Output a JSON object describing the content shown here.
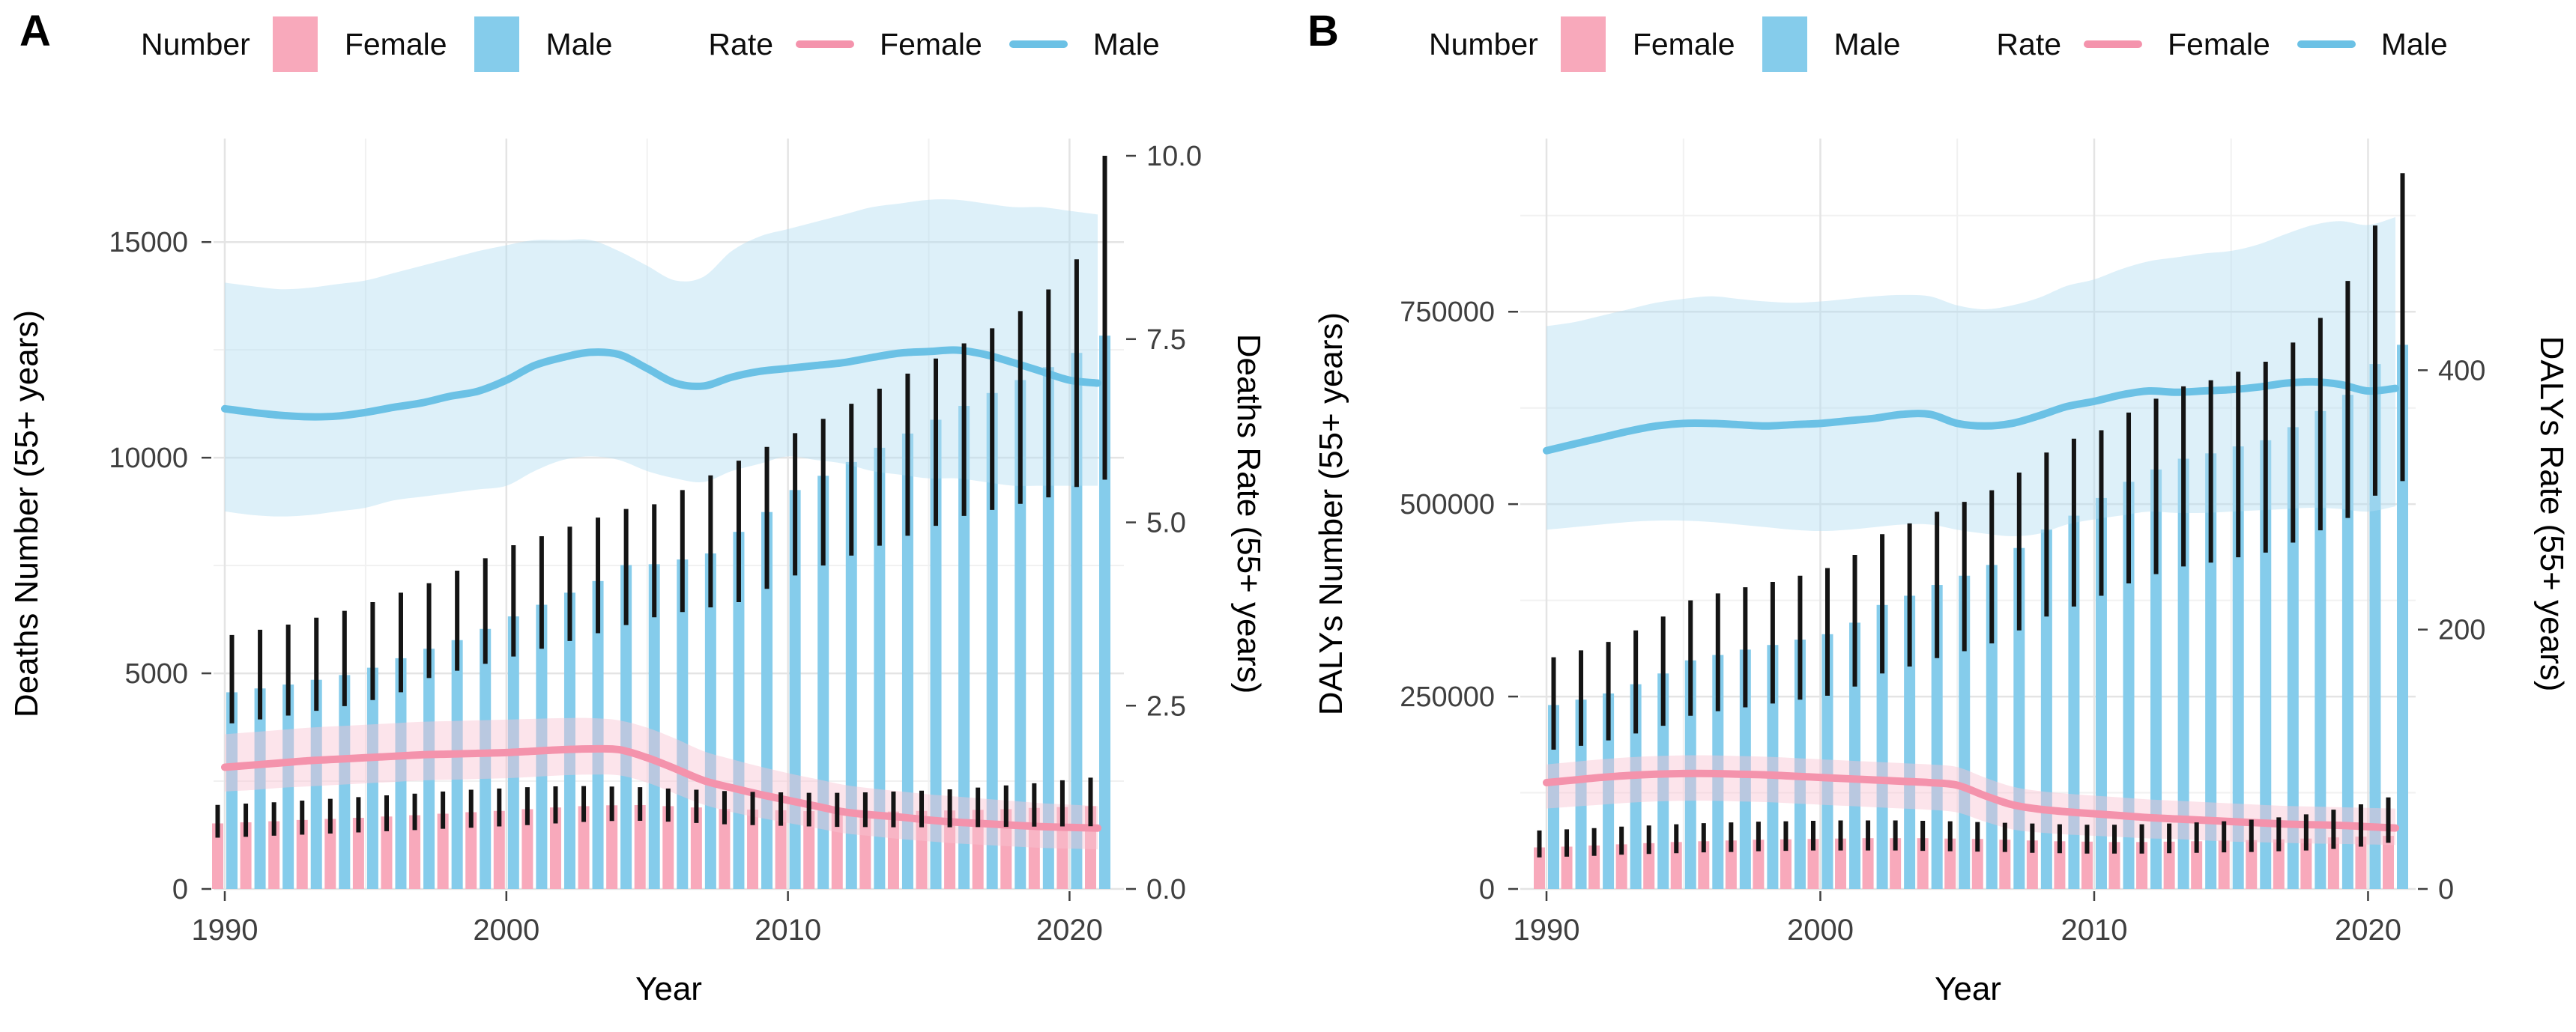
{
  "legend": {
    "number_label": "Number",
    "rate_label": "Rate",
    "female_label": "Female",
    "male_label": "Male"
  },
  "colors": {
    "female_bar": "#F8A9BB",
    "male_bar": "#85CCEB",
    "female_line": "#F493AC",
    "male_line": "#6BC1E5",
    "female_band": "#F9C4D2",
    "male_band": "#B3DDF2",
    "error_bar": "#141414",
    "grid_major": "#E4E4E4",
    "grid_minor": "#F1F1F1",
    "tick_text": "#3F3F3F",
    "title_text": "#000000",
    "tick_mark": "#404040"
  },
  "chart_data": [
    {
      "letter": "A",
      "type": "bar+line-dual-axis",
      "x_label": "Year",
      "left_axis": {
        "title": "Deaths Number (55+ years)",
        "ticks": [
          "0",
          "5000",
          "10000",
          "15000"
        ],
        "tick_values": [
          0,
          5000,
          10000,
          15000
        ],
        "max": 17400
      },
      "right_axis": {
        "title": "Deaths Rate (55+ years)",
        "ticks": [
          "0.0",
          "2.5",
          "5.0",
          "7.5",
          "10.0"
        ],
        "tick_values": [
          0,
          2.5,
          5,
          7.5,
          10
        ],
        "number_per_rate_unit": 1700
      },
      "x_axis": {
        "ticks": [
          "1990",
          "2000",
          "2010",
          "2020"
        ],
        "tick_values": [
          1990,
          2000,
          2010,
          2020
        ],
        "minor_values": [
          1995,
          2005,
          2015
        ]
      },
      "years": [
        1990,
        1991,
        1992,
        1993,
        1994,
        1995,
        1996,
        1997,
        1998,
        1999,
        2000,
        2001,
        2002,
        2003,
        2004,
        2005,
        2006,
        2007,
        2008,
        2009,
        2010,
        2011,
        2012,
        2013,
        2014,
        2015,
        2016,
        2017,
        2018,
        2019,
        2020,
        2021
      ],
      "bars": {
        "female": {
          "values": [
            1520,
            1545,
            1570,
            1600,
            1625,
            1650,
            1680,
            1710,
            1745,
            1780,
            1810,
            1850,
            1890,
            1920,
            1940,
            1945,
            1920,
            1890,
            1855,
            1840,
            1825,
            1805,
            1790,
            1785,
            1795,
            1810,
            1820,
            1835,
            1850,
            1880,
            1900,
            1920
          ],
          "upper": [
            1950,
            1980,
            2010,
            2050,
            2090,
            2130,
            2170,
            2210,
            2260,
            2300,
            2330,
            2360,
            2380,
            2385,
            2375,
            2360,
            2330,
            2300,
            2270,
            2250,
            2240,
            2230,
            2230,
            2240,
            2260,
            2280,
            2310,
            2350,
            2400,
            2450,
            2520,
            2580
          ],
          "lower": [
            1190,
            1210,
            1235,
            1260,
            1285,
            1310,
            1340,
            1365,
            1395,
            1420,
            1450,
            1480,
            1520,
            1555,
            1575,
            1580,
            1560,
            1530,
            1500,
            1480,
            1465,
            1450,
            1440,
            1435,
            1430,
            1430,
            1430,
            1435,
            1440,
            1445,
            1450,
            1455
          ]
        },
        "male": {
          "values": [
            4560,
            4650,
            4740,
            4850,
            4960,
            5130,
            5350,
            5570,
            5770,
            6030,
            6320,
            6590,
            6870,
            7140,
            7510,
            7530,
            7640,
            7780,
            8280,
            8740,
            9250,
            9580,
            9900,
            10230,
            10560,
            10880,
            11200,
            11500,
            11800,
            12100,
            12430,
            12830
          ],
          "upper": [
            5890,
            6010,
            6130,
            6290,
            6450,
            6650,
            6870,
            7090,
            7380,
            7670,
            7970,
            8180,
            8400,
            8610,
            8810,
            8920,
            9250,
            9590,
            9930,
            10250,
            10570,
            10900,
            11250,
            11600,
            11950,
            12300,
            12650,
            13000,
            13400,
            13900,
            14600,
            17000
          ],
          "lower": [
            3840,
            3930,
            4020,
            4130,
            4240,
            4380,
            4560,
            4890,
            5060,
            5220,
            5390,
            5570,
            5750,
            5930,
            6120,
            6300,
            6420,
            6530,
            6650,
            6960,
            7270,
            7500,
            7730,
            7960,
            8190,
            8420,
            8650,
            8790,
            8930,
            9080,
            9320,
            9490
          ]
        }
      },
      "rate_lines": {
        "female": {
          "values": [
            1.66,
            1.69,
            1.72,
            1.75,
            1.77,
            1.79,
            1.81,
            1.83,
            1.84,
            1.85,
            1.86,
            1.88,
            1.9,
            1.91,
            1.9,
            1.79,
            1.64,
            1.48,
            1.38,
            1.29,
            1.21,
            1.13,
            1.05,
            1.01,
            0.98,
            0.94,
            0.91,
            0.89,
            0.87,
            0.85,
            0.84,
            0.83
          ],
          "upper": [
            2.11,
            2.14,
            2.17,
            2.2,
            2.22,
            2.24,
            2.26,
            2.28,
            2.29,
            2.3,
            2.31,
            2.32,
            2.33,
            2.33,
            2.3,
            2.2,
            2.05,
            1.88,
            1.77,
            1.67,
            1.58,
            1.5,
            1.42,
            1.37,
            1.33,
            1.29,
            1.26,
            1.23,
            1.2,
            1.17,
            1.15,
            1.13
          ],
          "lower": [
            1.33,
            1.35,
            1.38,
            1.4,
            1.42,
            1.44,
            1.46,
            1.48,
            1.49,
            1.5,
            1.51,
            1.53,
            1.55,
            1.56,
            1.55,
            1.45,
            1.3,
            1.15,
            1.05,
            0.97,
            0.9,
            0.83,
            0.76,
            0.72,
            0.68,
            0.65,
            0.62,
            0.6,
            0.58,
            0.56,
            0.55,
            0.54
          ]
        },
        "male": {
          "values": [
            6.55,
            6.5,
            6.46,
            6.44,
            6.45,
            6.5,
            6.57,
            6.63,
            6.72,
            6.79,
            6.94,
            7.14,
            7.25,
            7.32,
            7.29,
            7.1,
            6.9,
            6.86,
            6.98,
            7.06,
            7.1,
            7.14,
            7.18,
            7.25,
            7.31,
            7.33,
            7.35,
            7.29,
            7.18,
            7.06,
            6.94,
            6.9
          ],
          "upper": [
            8.27,
            8.22,
            8.18,
            8.2,
            8.25,
            8.3,
            8.4,
            8.5,
            8.6,
            8.7,
            8.78,
            8.85,
            8.85,
            8.85,
            8.7,
            8.5,
            8.3,
            8.35,
            8.7,
            8.9,
            9.0,
            9.1,
            9.2,
            9.3,
            9.35,
            9.4,
            9.4,
            9.35,
            9.3,
            9.3,
            9.25,
            9.2
          ],
          "lower": [
            5.15,
            5.1,
            5.08,
            5.1,
            5.15,
            5.2,
            5.3,
            5.35,
            5.4,
            5.45,
            5.5,
            5.7,
            5.85,
            5.9,
            5.85,
            5.7,
            5.6,
            5.55,
            5.7,
            5.8,
            5.9,
            5.85,
            5.8,
            5.7,
            5.65,
            5.6,
            5.6,
            5.55,
            5.5,
            5.5,
            5.5,
            5.5
          ]
        }
      }
    },
    {
      "letter": "B",
      "type": "bar+line-dual-axis",
      "x_label": "Year",
      "left_axis": {
        "title": "DALYs Number (55+ years)",
        "ticks": [
          "0",
          "250000",
          "500000",
          "750000"
        ],
        "tick_values": [
          0,
          250000,
          500000,
          750000
        ],
        "max": 975000
      },
      "right_axis": {
        "title": "DALYs Rate (55+ years)",
        "ticks": [
          "0",
          "200",
          "400"
        ],
        "tick_values": [
          0,
          200,
          400
        ],
        "number_per_rate_unit": 1685
      },
      "x_axis": {
        "ticks": [
          "1990",
          "2000",
          "2010",
          "2020"
        ],
        "tick_values": [
          1990,
          2000,
          2010,
          2020
        ],
        "minor_values": [
          1995,
          2005,
          2015
        ]
      },
      "years": [
        1990,
        1991,
        1992,
        1993,
        1994,
        1995,
        1996,
        1997,
        1998,
        1999,
        2000,
        2001,
        2002,
        2003,
        2004,
        2005,
        2006,
        2007,
        2008,
        2009,
        2010,
        2011,
        2012,
        2013,
        2014,
        2015,
        2016,
        2017,
        2018,
        2019,
        2020,
        2021
      ],
      "bars": {
        "female": {
          "values": [
            54000,
            55000,
            56500,
            58000,
            59500,
            61000,
            62000,
            63000,
            64000,
            64500,
            65000,
            65500,
            66000,
            66000,
            66000,
            65500,
            65000,
            64000,
            63000,
            62000,
            61500,
            61000,
            61000,
            61500,
            62000,
            63000,
            63500,
            64500,
            65500,
            67000,
            68000,
            69000
          ],
          "upper": [
            76000,
            77500,
            79000,
            81000,
            82500,
            84000,
            85500,
            86500,
            87500,
            88000,
            88500,
            89000,
            89000,
            89000,
            88500,
            88000,
            87000,
            86000,
            85000,
            84000,
            83500,
            83500,
            84000,
            85000,
            86500,
            88000,
            90000,
            93000,
            97000,
            103000,
            110000,
            119000
          ],
          "lower": [
            41000,
            42000,
            43000,
            44500,
            45500,
            46500,
            47500,
            48000,
            49000,
            49500,
            50000,
            50000,
            50000,
            50000,
            49500,
            49000,
            48500,
            48000,
            47000,
            46500,
            46000,
            46000,
            46000,
            46500,
            47000,
            47500,
            48000,
            49000,
            50000,
            52000,
            55000,
            60000
          ]
        },
        "male": {
          "values": [
            239000,
            246000,
            254000,
            266000,
            280000,
            297000,
            304000,
            311000,
            317000,
            324000,
            331000,
            346000,
            369000,
            381000,
            395000,
            407000,
            421000,
            443000,
            467000,
            485000,
            508000,
            529000,
            545000,
            559000,
            566000,
            575000,
            583000,
            600000,
            621000,
            642000,
            682000,
            707000
          ],
          "upper": [
            301000,
            310000,
            321000,
            336000,
            354000,
            375000,
            384000,
            392000,
            399000,
            407000,
            417000,
            434000,
            461000,
            475000,
            490000,
            503000,
            518000,
            541000,
            567000,
            585000,
            596000,
            619000,
            637000,
            653000,
            661000,
            672000,
            685000,
            710000,
            742000,
            790000,
            862000,
            930000
          ],
          "lower": [
            181000,
            186000,
            193000,
            202000,
            212000,
            225000,
            231000,
            236000,
            241000,
            246000,
            251000,
            263000,
            280000,
            289000,
            300000,
            309000,
            319000,
            336000,
            354000,
            367000,
            381000,
            397000,
            409000,
            419000,
            424000,
            431000,
            437000,
            450000,
            466000,
            482000,
            511000,
            530000
          ]
        }
      },
      "rate_lines": {
        "female": {
          "values": [
            82,
            84,
            86,
            87.5,
            88.5,
            89,
            89,
            88.5,
            88,
            87,
            86,
            85,
            84,
            83,
            82,
            80,
            72,
            65,
            61.5,
            59.5,
            58,
            56.5,
            55,
            54,
            53,
            52,
            51,
            50,
            49.5,
            49,
            48,
            47
          ],
          "upper": [
            96,
            98,
            100,
            101.5,
            102.5,
            103,
            103,
            102.5,
            102,
            101,
            100,
            99,
            98,
            97,
            96,
            94,
            86,
            79,
            75.5,
            73.5,
            72,
            70.5,
            69,
            68,
            67,
            66,
            65,
            64,
            63.5,
            63,
            62.5,
            62
          ],
          "lower": [
            62,
            63.5,
            65,
            66.5,
            67.5,
            68,
            68,
            67.5,
            67,
            66,
            65,
            64,
            63,
            62,
            61,
            59,
            52,
            46,
            43.5,
            42,
            41,
            40,
            39,
            38.5,
            37.5,
            36.5,
            36,
            35.5,
            35,
            34.7,
            34.3,
            34
          ]
        },
        "male": {
          "values": [
            338,
            343,
            348,
            353,
            357,
            359,
            359,
            358,
            357,
            358,
            359,
            361,
            363,
            366,
            366,
            359,
            357,
            359,
            365,
            372,
            376,
            381,
            384,
            383,
            384,
            385,
            387,
            390,
            391,
            389,
            384,
            386
          ],
          "upper": [
            434,
            437,
            442,
            447,
            452,
            455,
            457,
            455,
            453,
            452,
            453,
            455,
            457,
            458,
            457,
            450,
            447,
            450,
            456,
            465,
            470,
            478,
            484,
            487,
            490,
            492,
            497,
            505,
            512,
            515,
            512,
            518
          ],
          "lower": [
            277,
            279,
            281,
            283,
            284,
            284,
            283,
            281,
            279,
            277,
            276,
            277,
            279,
            281,
            281,
            277,
            274,
            272,
            274,
            281,
            285,
            288,
            291,
            290,
            290,
            291,
            292,
            293,
            294,
            293,
            291,
            295
          ]
        }
      }
    }
  ]
}
